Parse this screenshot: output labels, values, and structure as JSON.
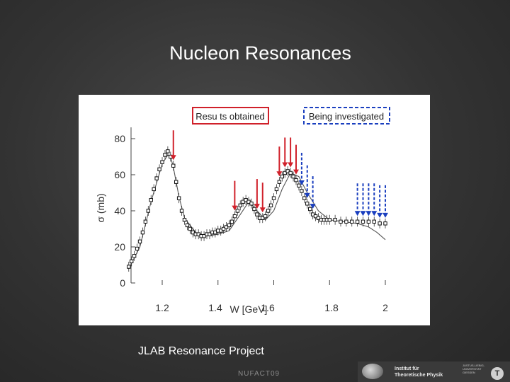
{
  "slide": {
    "title": "Nucleon Resonances",
    "caption": "JLAB Resonance Project",
    "footer": "NUFACT09",
    "logo": {
      "institute_line1": "Institut für",
      "institute_line2": "Theoretische Physik",
      "small_text": "JUSTUS-LIEBIG-UNIVERSITÄT GIESSEN",
      "badge": "T"
    }
  },
  "chart_data": {
    "type": "scatter",
    "xlabel": "W [GeV]",
    "ylabel": "σ (mb)",
    "xlim": [
      1.08,
      2.02
    ],
    "ylim": [
      0,
      85
    ],
    "xticks": [
      1.2,
      1.4,
      1.6,
      1.8,
      2
    ],
    "xtick_labels": [
      "1.2",
      "1.4",
      "1.6",
      "1.8",
      "2"
    ],
    "yticks": [
      0,
      20,
      40,
      60,
      80
    ],
    "ytick_labels": [
      "0",
      "20",
      "40",
      "60",
      "80"
    ],
    "grid": false,
    "legend": [
      {
        "label": "Resu ts obtained",
        "color": "#d0202a",
        "style": "solid"
      },
      {
        "label": "Being investigated",
        "color": "#1a3fbf",
        "style": "dashed"
      }
    ],
    "series": [
      {
        "kind": "points",
        "x": [
          1.08,
          1.09,
          1.1,
          1.11,
          1.12,
          1.13,
          1.14,
          1.15,
          1.16,
          1.17,
          1.18,
          1.19,
          1.2,
          1.21,
          1.22,
          1.23,
          1.24,
          1.25,
          1.26,
          1.27,
          1.28,
          1.29,
          1.3,
          1.31,
          1.32,
          1.33,
          1.34,
          1.35,
          1.36,
          1.37,
          1.38,
          1.39,
          1.4,
          1.41,
          1.42,
          1.43,
          1.44,
          1.45,
          1.46,
          1.47,
          1.48,
          1.49,
          1.5,
          1.51,
          1.52,
          1.53,
          1.54,
          1.55,
          1.56,
          1.57,
          1.58,
          1.59,
          1.6,
          1.61,
          1.62,
          1.63,
          1.64,
          1.65,
          1.66,
          1.67,
          1.68,
          1.69,
          1.7,
          1.71,
          1.72,
          1.73,
          1.74,
          1.75,
          1.76,
          1.77,
          1.78,
          1.79,
          1.8,
          1.82,
          1.84,
          1.86,
          1.88,
          1.9,
          1.92,
          1.94,
          1.96,
          1.98,
          2.0
        ],
        "y": [
          9,
          12,
          15,
          19,
          23,
          28,
          34,
          40,
          46,
          52,
          58,
          63,
          67,
          71,
          73,
          70,
          65,
          56,
          47,
          40,
          35,
          32,
          30,
          28,
          27,
          27,
          26,
          26,
          27,
          27,
          28,
          28,
          29,
          29,
          30,
          31,
          32,
          34,
          37,
          40,
          43,
          45,
          46,
          45,
          44,
          41,
          38,
          36,
          36,
          37,
          40,
          43,
          47,
          52,
          56,
          59,
          61,
          62,
          61,
          59,
          57,
          54,
          51,
          47,
          44,
          41,
          38,
          37,
          36,
          35,
          35,
          35,
          35,
          35,
          34,
          34,
          34,
          34,
          34,
          34,
          34,
          33,
          33
        ]
      },
      {
        "kind": "line",
        "x": [
          1.08,
          1.12,
          1.16,
          1.2,
          1.22,
          1.23,
          1.24,
          1.26,
          1.28,
          1.32,
          1.36,
          1.4,
          1.44,
          1.48,
          1.51,
          1.54,
          1.57,
          1.6,
          1.63,
          1.66,
          1.69,
          1.72,
          1.76,
          1.8,
          1.85,
          1.9,
          1.94,
          1.97,
          2.0
        ],
        "y": [
          8,
          20,
          45,
          66,
          71,
          70,
          64,
          48,
          36,
          28,
          26,
          27,
          29,
          38,
          45,
          40,
          35,
          40,
          52,
          61,
          59,
          50,
          40,
          35,
          34,
          33,
          31,
          28,
          24
        ]
      }
    ],
    "annotations": {
      "red_arrows_x": [
        1.24,
        1.46,
        1.54,
        1.56,
        1.62,
        1.64,
        1.66,
        1.68
      ],
      "blue_arrows_x": [
        1.7,
        1.72,
        1.74,
        1.9,
        1.92,
        1.94,
        1.96,
        1.98,
        2.0
      ]
    }
  }
}
